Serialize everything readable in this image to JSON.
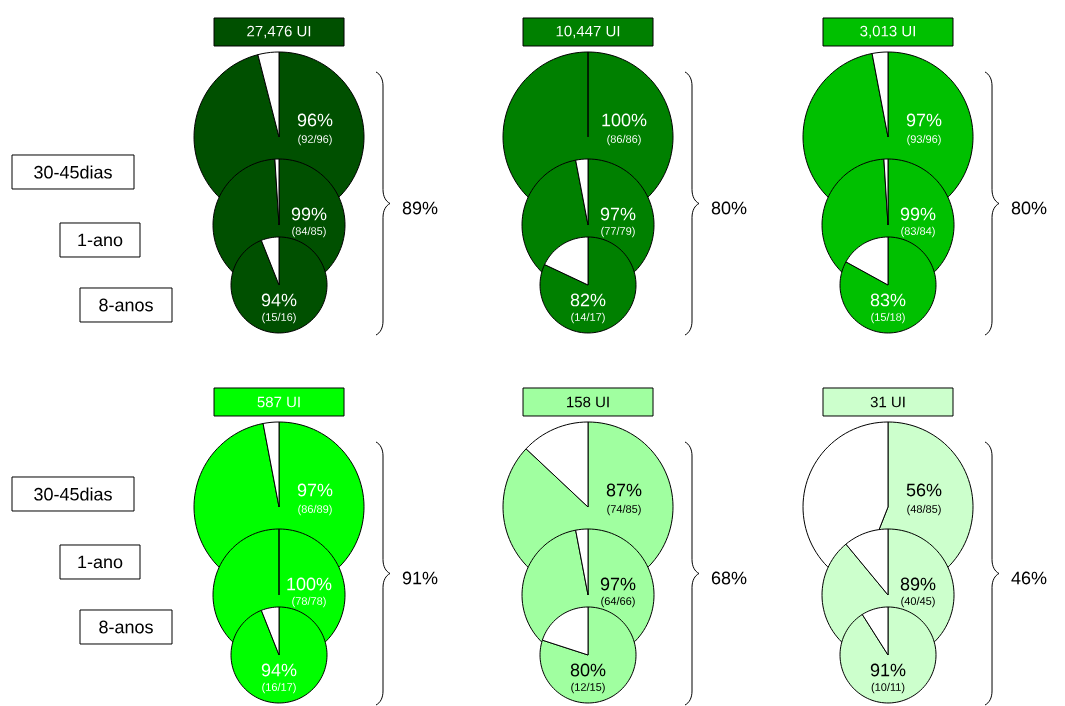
{
  "chart_data": [
    {
      "type": "other",
      "annotations": [
        "30-45dias",
        "1-ano",
        "8-anos"
      ]
    },
    {
      "type": "other",
      "title": "27,476 UI",
      "annotations": [
        "89%"
      ]
    },
    {
      "type": "pie",
      "categories": [
        null,
        null
      ],
      "values": [
        96,
        4
      ],
      "colors": [
        "#005000",
        "#ffffff"
      ],
      "value_labels": [
        "96%",
        null
      ],
      "annotations": [
        "(92/96)"
      ]
    },
    {
      "type": "pie",
      "categories": [
        null,
        null
      ],
      "values": [
        99,
        1
      ],
      "colors": [
        "#005000",
        "#ffffff"
      ],
      "value_labels": [
        "99%",
        null
      ],
      "annotations": [
        "(84/85)"
      ]
    },
    {
      "type": "pie",
      "categories": [
        null,
        null
      ],
      "values": [
        94,
        6
      ],
      "colors": [
        "#005000",
        "#ffffff"
      ],
      "value_labels": [
        "94%",
        null
      ],
      "annotations": [
        "(15/16)"
      ]
    },
    {
      "type": "other",
      "title": "10,447 UI",
      "annotations": [
        "80%"
      ]
    },
    {
      "type": "pie",
      "categories": [
        null,
        null
      ],
      "values": [
        100,
        0
      ],
      "colors": [
        "#008000",
        "#ffffff"
      ],
      "value_labels": [
        "100%",
        null
      ],
      "annotations": [
        "(86/86)"
      ]
    },
    {
      "type": "pie",
      "categories": [
        null,
        null
      ],
      "values": [
        97,
        3
      ],
      "colors": [
        "#008000",
        "#ffffff"
      ],
      "value_labels": [
        "97%",
        null
      ],
      "annotations": [
        "(77/79)"
      ]
    },
    {
      "type": "pie",
      "categories": [
        null,
        null
      ],
      "values": [
        82,
        18
      ],
      "colors": [
        "#008000",
        "#ffffff"
      ],
      "value_labels": [
        "82%",
        null
      ],
      "annotations": [
        "(14/17)"
      ]
    },
    {
      "type": "other",
      "title": "3,013 UI",
      "annotations": [
        "80%"
      ]
    },
    {
      "type": "pie",
      "categories": [
        null,
        null
      ],
      "values": [
        97,
        3
      ],
      "colors": [
        "#00c000",
        "#ffffff"
      ],
      "value_labels": [
        "97%",
        null
      ],
      "annotations": [
        "(93/96)"
      ]
    },
    {
      "type": "pie",
      "categories": [
        null,
        null
      ],
      "values": [
        99,
        1
      ],
      "colors": [
        "#00c000",
        "#ffffff"
      ],
      "value_labels": [
        "99%",
        null
      ],
      "annotations": [
        "(83/84)"
      ]
    },
    {
      "type": "pie",
      "categories": [
        null,
        null
      ],
      "values": [
        83,
        17
      ],
      "colors": [
        "#00c000",
        "#ffffff"
      ],
      "value_labels": [
        "83%",
        null
      ],
      "annotations": [
        "(15/18)"
      ]
    },
    {
      "type": "other",
      "annotations": [
        "30-45dias",
        "1-ano",
        "8-anos"
      ]
    },
    {
      "type": "other",
      "title": "587 UI",
      "annotations": [
        "91%"
      ]
    },
    {
      "type": "pie",
      "categories": [
        null,
        null
      ],
      "values": [
        97,
        3
      ],
      "colors": [
        "#00ff00",
        "#ffffff"
      ],
      "value_labels": [
        "97%",
        null
      ],
      "annotations": [
        "(86/89)"
      ]
    },
    {
      "type": "pie",
      "categories": [
        null,
        null
      ],
      "values": [
        100,
        0
      ],
      "colors": [
        "#00ff00",
        "#ffffff"
      ],
      "value_labels": [
        "100%",
        null
      ],
      "annotations": [
        "(78/78)"
      ]
    },
    {
      "type": "pie",
      "categories": [
        null,
        null
      ],
      "values": [
        94,
        6
      ],
      "colors": [
        "#00ff00",
        "#ffffff"
      ],
      "value_labels": [
        "94%",
        null
      ],
      "annotations": [
        "(16/17)"
      ]
    },
    {
      "type": "other",
      "title": "158 UI",
      "annotations": [
        "68%"
      ]
    },
    {
      "type": "pie",
      "categories": [
        null,
        null
      ],
      "values": [
        87,
        13
      ],
      "colors": [
        "#a0ffa0",
        "#ffffff"
      ],
      "value_labels": [
        "87%",
        null
      ],
      "annotations": [
        "(74/85)"
      ]
    },
    {
      "type": "pie",
      "categories": [
        null,
        null
      ],
      "values": [
        97,
        3
      ],
      "colors": [
        "#a0ffa0",
        "#ffffff"
      ],
      "value_labels": [
        "97%",
        null
      ],
      "annotations": [
        "(64/66)"
      ]
    },
    {
      "type": "pie",
      "categories": [
        null,
        null
      ],
      "values": [
        80,
        20
      ],
      "colors": [
        "#a0ffa0",
        "#ffffff"
      ],
      "value_labels": [
        "80%",
        null
      ],
      "annotations": [
        "(12/15)"
      ]
    },
    {
      "type": "other",
      "title": "31 UI",
      "annotations": [
        "46%"
      ]
    },
    {
      "type": "pie",
      "categories": [
        null,
        null
      ],
      "values": [
        56,
        44
      ],
      "colors": [
        "#ccffcc",
        "#ffffff"
      ],
      "value_labels": [
        "56%",
        null
      ],
      "annotations": [
        "(48/85)"
      ]
    },
    {
      "type": "pie",
      "categories": [
        null,
        null
      ],
      "values": [
        89,
        11
      ],
      "colors": [
        "#ccffcc",
        "#ffffff"
      ],
      "value_labels": [
        "89%",
        null
      ],
      "annotations": [
        "(40/45)"
      ]
    },
    {
      "type": "pie",
      "categories": [
        null,
        null
      ],
      "values": [
        91,
        9
      ],
      "colors": [
        "#ccffcc",
        "#ffffff"
      ],
      "value_labels": [
        "91%",
        null
      ],
      "annotations": [
        "(10/11)"
      ]
    }
  ]
}
